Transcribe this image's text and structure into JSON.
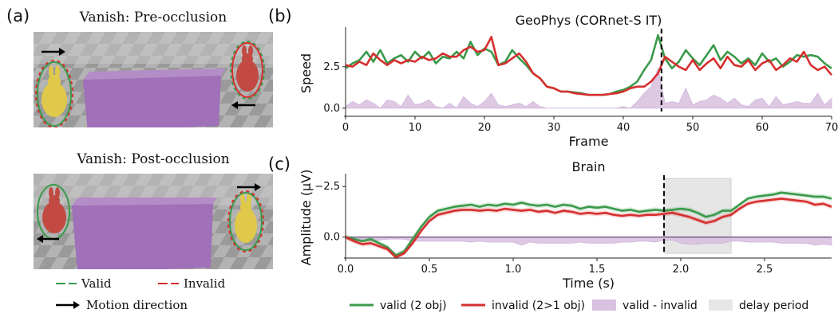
{
  "panels": {
    "a": {
      "letter": "(a)",
      "top_title": "Vanish: Pre-occlusion",
      "bottom_title": "Vanish: Post-occlusion",
      "legend": {
        "valid": "Valid",
        "invalid": "Invalid",
        "motion": "Motion direction"
      }
    },
    "b": {
      "letter": "(b)"
    },
    "c": {
      "letter": "(c)"
    }
  },
  "colors": {
    "valid": "#3a9a4a",
    "invalid": "#d62f2f",
    "diff": "#d8c0e0",
    "delay": "#e6e6e6",
    "occluder": "#a070b8"
  },
  "chart_data": [
    {
      "type": "line",
      "title": "GeoPhys (CORnet-S IT)",
      "xlabel": "Frame",
      "ylabel": "Speed",
      "xlim": [
        0,
        70
      ],
      "ylim": [
        -0.2,
        4.6
      ],
      "xticks": [
        "0",
        "10",
        "20",
        "30",
        "40",
        "50",
        "60",
        "70"
      ],
      "yticks": [
        "0.0",
        "2.5"
      ],
      "x": [
        0,
        1,
        2,
        3,
        4,
        5,
        6,
        7,
        8,
        9,
        10,
        11,
        12,
        13,
        14,
        15,
        16,
        17,
        18,
        19,
        20,
        21,
        22,
        23,
        24,
        25,
        26,
        27,
        28,
        29,
        30,
        31,
        32,
        33,
        34,
        35,
        36,
        37,
        38,
        39,
        40,
        41,
        42,
        43,
        44,
        45,
        46,
        47,
        48,
        49,
        50,
        51,
        52,
        53,
        54,
        55,
        56,
        57,
        58,
        59,
        60,
        61,
        62,
        63,
        64,
        65,
        66,
        67,
        68,
        69,
        70
      ],
      "series": [
        {
          "name": "valid",
          "values": [
            2.4,
            2.7,
            2.9,
            3.4,
            2.8,
            3.5,
            2.7,
            3.0,
            3.2,
            2.8,
            3.4,
            3.0,
            3.4,
            2.7,
            3.1,
            3.0,
            3.4,
            3.0,
            4.0,
            3.2,
            3.6,
            3.4,
            2.6,
            2.8,
            3.5,
            3.0,
            2.6,
            2.1,
            1.8,
            1.3,
            1.2,
            1.0,
            1.0,
            0.95,
            0.9,
            0.8,
            0.8,
            0.8,
            0.85,
            1.0,
            1.1,
            1.3,
            1.6,
            2.3,
            2.9,
            4.4,
            3.0,
            2.4,
            2.8,
            3.5,
            3.0,
            2.6,
            3.2,
            3.8,
            2.9,
            3.4,
            3.1,
            2.7,
            3.0,
            2.6,
            3.3,
            2.8,
            3.0,
            2.5,
            2.8,
            3.2,
            3.1,
            3.2,
            3.1,
            2.7,
            2.4
          ]
        },
        {
          "name": "invalid",
          "values": [
            2.6,
            2.5,
            2.8,
            2.6,
            3.3,
            2.9,
            2.6,
            2.9,
            2.7,
            2.9,
            2.8,
            3.1,
            2.9,
            3.0,
            3.3,
            3.1,
            3.1,
            3.5,
            3.7,
            3.4,
            3.5,
            4.3,
            2.6,
            2.7,
            3.0,
            3.3,
            2.8,
            2.1,
            1.8,
            1.3,
            1.2,
            1.0,
            1.0,
            0.9,
            0.85,
            0.8,
            0.8,
            0.8,
            0.85,
            0.9,
            1.0,
            1.2,
            1.3,
            1.3,
            1.6,
            2.1,
            3.1,
            2.8,
            2.5,
            2.3,
            2.9,
            2.3,
            2.7,
            3.0,
            2.4,
            3.1,
            2.6,
            2.5,
            2.9,
            2.3,
            2.7,
            2.9,
            2.3,
            2.6,
            3.0,
            2.8,
            3.4,
            2.6,
            2.3,
            2.5,
            2.0
          ]
        }
      ],
      "diff": [
        0.1,
        0.4,
        0.2,
        0.5,
        0.3,
        0.0,
        0.5,
        0.4,
        0.1,
        0.8,
        0.2,
        0.3,
        0.5,
        0.1,
        0.0,
        0.3,
        0.0,
        0.7,
        0.3,
        0.1,
        0.4,
        0.9,
        0.2,
        0.1,
        0.2,
        0.3,
        0.1,
        0.4,
        0.1,
        0.0,
        0.0,
        0.0,
        0.0,
        0.0,
        0.0,
        0.0,
        0.0,
        0.0,
        0.0,
        0.0,
        0.1,
        0.0,
        0.4,
        0.9,
        1.3,
        2.4,
        0.3,
        0.4,
        0.3,
        1.2,
        0.2,
        0.4,
        0.5,
        0.8,
        0.6,
        0.3,
        0.6,
        0.2,
        0.1,
        0.5,
        0.6,
        0.1,
        0.7,
        0.2,
        0.3,
        0.4,
        0.3,
        0.3,
        0.9,
        0.2,
        0.6
      ],
      "marker_x": 45.5
    },
    {
      "type": "line",
      "title": "Brain",
      "xlabel": "Time (s)",
      "ylabel": "Amplitude (μV)",
      "xlim": [
        0.0,
        2.9
      ],
      "ylim": [
        0.8,
        -2.9
      ],
      "xticks": [
        "0.0",
        "0.5",
        "1.0",
        "1.5",
        "2.0",
        "2.5"
      ],
      "yticks": [
        "−2.5",
        "0.0"
      ],
      "x": [
        0.0,
        0.05,
        0.1,
        0.15,
        0.2,
        0.25,
        0.3,
        0.35,
        0.4,
        0.45,
        0.5,
        0.55,
        0.6,
        0.65,
        0.7,
        0.75,
        0.8,
        0.85,
        0.9,
        0.95,
        1.0,
        1.05,
        1.1,
        1.15,
        1.2,
        1.25,
        1.3,
        1.35,
        1.4,
        1.45,
        1.5,
        1.55,
        1.6,
        1.65,
        1.7,
        1.75,
        1.8,
        1.85,
        1.9,
        1.95,
        2.0,
        2.05,
        2.1,
        2.15,
        2.2,
        2.25,
        2.3,
        2.35,
        2.4,
        2.45,
        2.5,
        2.55,
        2.6,
        2.65,
        2.7,
        2.75,
        2.8,
        2.85,
        2.9
      ],
      "series": [
        {
          "name": "valid (2 obj)",
          "values": [
            0.0,
            0.1,
            0.2,
            0.1,
            0.3,
            0.5,
            0.9,
            0.7,
            0.1,
            -0.5,
            -1.0,
            -1.3,
            -1.4,
            -1.5,
            -1.55,
            -1.6,
            -1.5,
            -1.6,
            -1.55,
            -1.65,
            -1.6,
            -1.7,
            -1.6,
            -1.55,
            -1.6,
            -1.5,
            -1.6,
            -1.55,
            -1.4,
            -1.5,
            -1.45,
            -1.5,
            -1.4,
            -1.3,
            -1.35,
            -1.25,
            -1.3,
            -1.35,
            -1.3,
            -1.35,
            -1.4,
            -1.35,
            -1.2,
            -1.0,
            -1.1,
            -1.3,
            -1.3,
            -1.6,
            -1.9,
            -2.0,
            -2.05,
            -2.1,
            -2.2,
            -2.15,
            -2.1,
            -2.05,
            -2.0,
            -2.0,
            -1.9
          ]
        },
        {
          "name": "invalid (2>1 obj)",
          "values": [
            0.0,
            0.2,
            0.35,
            0.3,
            0.45,
            0.6,
            1.0,
            0.8,
            0.3,
            -0.3,
            -0.8,
            -1.1,
            -1.2,
            -1.3,
            -1.35,
            -1.35,
            -1.3,
            -1.35,
            -1.3,
            -1.4,
            -1.35,
            -1.3,
            -1.35,
            -1.25,
            -1.3,
            -1.2,
            -1.3,
            -1.25,
            -1.15,
            -1.2,
            -1.15,
            -1.2,
            -1.1,
            -1.05,
            -1.1,
            -1.05,
            -1.1,
            -1.1,
            -1.15,
            -1.2,
            -1.1,
            -1.0,
            -0.85,
            -0.7,
            -0.8,
            -1.0,
            -1.1,
            -1.4,
            -1.65,
            -1.75,
            -1.8,
            -1.85,
            -1.9,
            -1.85,
            -1.8,
            -1.75,
            -1.6,
            -1.65,
            -1.5
          ]
        }
      ],
      "diff": [
        0.0,
        0.1,
        0.15,
        0.2,
        0.15,
        0.1,
        0.1,
        0.1,
        0.2,
        0.2,
        0.2,
        0.2,
        0.2,
        0.2,
        0.2,
        0.25,
        0.2,
        0.25,
        0.25,
        0.25,
        0.25,
        0.4,
        0.25,
        0.3,
        0.3,
        0.3,
        0.3,
        0.3,
        0.25,
        0.3,
        0.3,
        0.3,
        0.3,
        0.25,
        0.25,
        0.2,
        0.2,
        0.25,
        0.15,
        0.15,
        0.3,
        0.35,
        0.35,
        0.3,
        0.3,
        0.3,
        0.2,
        0.2,
        0.25,
        0.25,
        0.25,
        0.25,
        0.3,
        0.3,
        0.3,
        0.3,
        0.4,
        0.35,
        0.4
      ],
      "delay_period": [
        1.9,
        2.3
      ],
      "marker_x": 1.9
    }
  ],
  "bottom_legend": {
    "valid": "valid (2 obj)",
    "invalid": "invalid (2>1 obj)",
    "diff": "valid - invalid",
    "delay": "delay period"
  }
}
